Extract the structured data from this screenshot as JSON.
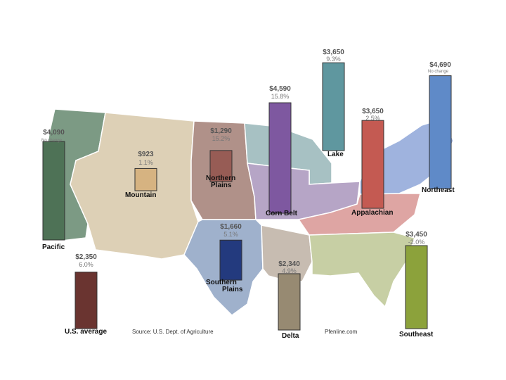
{
  "chart_data": {
    "type": "bar",
    "categories": [
      "Pacific",
      "Mountain",
      "Northern Plains",
      "Corn Belt",
      "Lake",
      "Appalachian",
      "Northeast",
      "Southern Plains",
      "Delta",
      "Southeast",
      "U.S. average"
    ],
    "values": [
      4090,
      923,
      1290,
      4590,
      3650,
      3650,
      4690,
      1660,
      2340,
      3450,
      2350
    ],
    "value_labels": [
      "$4,090",
      "$923",
      "$1,290",
      "$4,590",
      "$3,650",
      "$3,650",
      "$4,690",
      "$1,660",
      "$2,340",
      "$3,450",
      "$2,350"
    ],
    "change_labels": [
      "No change",
      "1.1%",
      "15.2%",
      "15.8%",
      "9.3%",
      "2.5%",
      "No change",
      "5.1%",
      "4.9%",
      "-2.0%",
      "6.0%"
    ],
    "colors": [
      "#4e7256",
      "#d6b381",
      "#975c55",
      "#7e58a0",
      "#5f979f",
      "#c45a52",
      "#5f8ac8",
      "#233a7e",
      "#978a72",
      "#8ca23b",
      "#6a3430"
    ],
    "source": "Source: U.S. Dept. of Agriculture",
    "credit": "Pfenline.com"
  }
}
